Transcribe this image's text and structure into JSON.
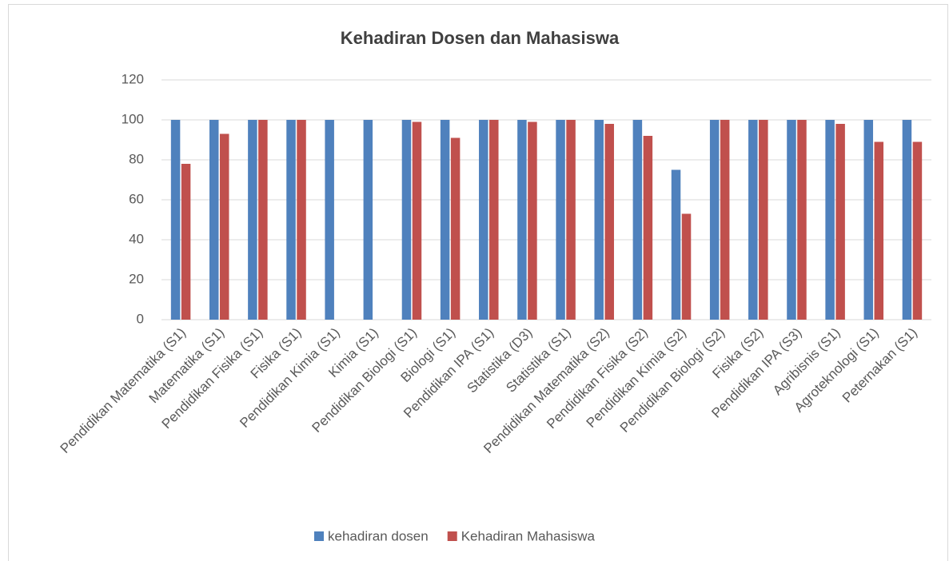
{
  "chart_data": {
    "type": "bar",
    "title": "Kehadiran Dosen dan Mahasiswa",
    "categories": [
      "Pendidikan Matematika (S1)",
      "Matematika (S1)",
      "Pendidikan Fisika (S1)",
      "Fisika (S1)",
      "Pendidikan Kimia (S1)",
      "Kimia (S1)",
      "Pendidikan Biologi (S1)",
      "Biologi (S1)",
      "Pendidikan IPA (S1)",
      "Statistika (D3)",
      "Statistika (S1)",
      "Pendidikan Matematika (S2)",
      "Pendidikan Fisika (S2)",
      "Pendidikan Kimia (S2)",
      "Pendidikan Biologi (S2)",
      "Fisika (S2)",
      "Pendidikan IPA (S3)",
      "Agribisnis (S1)",
      "Agroteknologi (S1)",
      "Peternakan (S1)"
    ],
    "series": [
      {
        "name": "kehadiran dosen",
        "color": "#4f81bd",
        "values": [
          100,
          100,
          100,
          100,
          100,
          100,
          100,
          100,
          100,
          100,
          100,
          100,
          100,
          75,
          100,
          100,
          100,
          100,
          100,
          100
        ]
      },
      {
        "name": "Kehadiran Mahasiswa",
        "color": "#c0504d",
        "values": [
          78,
          93,
          100,
          100,
          null,
          null,
          99,
          91,
          100,
          99,
          100,
          98,
          92,
          53,
          100,
          100,
          100,
          98,
          89,
          89
        ]
      }
    ],
    "ylim": [
      0,
      120
    ],
    "yticks": [
      0,
      20,
      40,
      60,
      80,
      100,
      120
    ],
    "grid": true,
    "legend": "bottom"
  }
}
